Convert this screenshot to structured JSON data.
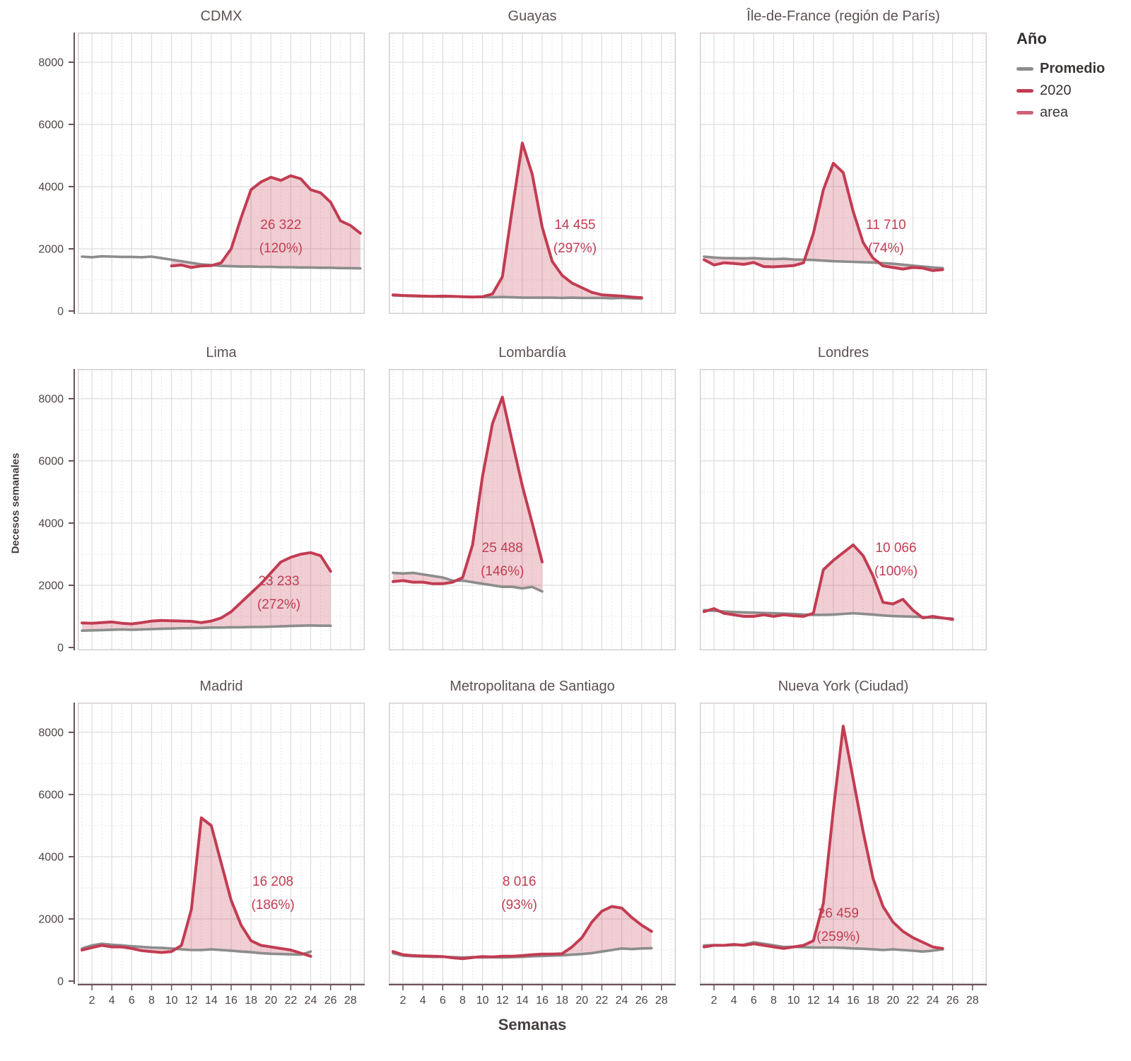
{
  "page": {
    "x_axis_title": "Semanas",
    "y_axis_title": "Decesos semanales"
  },
  "legend": {
    "title": "Año",
    "items": [
      {
        "label": "Promedio",
        "color": "#8d8d8d",
        "bold": true
      },
      {
        "label": "2020",
        "color": "#c23c52",
        "bold": false
      },
      {
        "label": "area",
        "color": "#cf6276",
        "bold": false
      }
    ]
  },
  "chart_data": {
    "type": "line",
    "title": "",
    "xlabel": "Semanas",
    "ylabel": "Decesos semanales",
    "x_ticks_labeled": [
      2,
      4,
      6,
      8,
      10,
      12,
      14,
      16,
      18,
      20,
      22,
      24,
      26,
      28
    ],
    "y_ticks": [
      0,
      2000,
      4000,
      6000,
      8000
    ],
    "x_range": [
      1,
      29
    ],
    "y_range": [
      0,
      8950
    ],
    "grid": true,
    "legend_position": "top-right",
    "series_colors": {
      "promedio": "#8c8c8c",
      "2020": "#c23c52",
      "area_fill": "rgba(195,60,82,0.25)"
    },
    "panels": [
      {
        "title": "CDMX",
        "annotation": {
          "line1": "26 322",
          "line2": "(120%)",
          "week": 21,
          "value1": 2770,
          "value2": 2020
        },
        "promedio": [
          1750,
          1730,
          1760,
          1750,
          1740,
          1740,
          1730,
          1750,
          1700,
          1650,
          1600,
          1550,
          1500,
          1480,
          1450,
          1440,
          1430,
          1430,
          1420,
          1420,
          1410,
          1410,
          1400,
          1400,
          1390,
          1390,
          1380,
          1380,
          1370
        ],
        "y2020": [
          null,
          null,
          null,
          null,
          null,
          null,
          null,
          null,
          null,
          1450,
          1480,
          1400,
          1450,
          1460,
          1550,
          2000,
          3000,
          3900,
          4150,
          4300,
          4200,
          4350,
          4250,
          3900,
          3800,
          3500,
          2900,
          2750,
          2500
        ]
      },
      {
        "title": "Guayas",
        "annotation": {
          "line1": "14 455",
          "line2": "(297%)",
          "week": 19.3,
          "value1": 2770,
          "value2": 2020
        },
        "promedio": [
          500,
          490,
          480,
          470,
          470,
          460,
          470,
          460,
          450,
          450,
          440,
          450,
          440,
          430,
          430,
          430,
          430,
          420,
          430,
          420,
          420,
          420,
          410,
          420,
          410,
          400
        ],
        "y2020": [
          520,
          500,
          490,
          480,
          470,
          480,
          470,
          460,
          450,
          460,
          550,
          1100,
          3300,
          5400,
          4400,
          2700,
          1600,
          1150,
          900,
          750,
          600,
          520,
          500,
          480,
          450,
          430
        ]
      },
      {
        "title": "Île-de-France (región de París)",
        "annotation": {
          "line1": "11 710",
          "line2": "(74%)",
          "week": 19.3,
          "value1": 2770,
          "value2": 2020
        },
        "promedio": [
          1750,
          1720,
          1700,
          1700,
          1690,
          1700,
          1680,
          1670,
          1680,
          1660,
          1650,
          1640,
          1620,
          1600,
          1590,
          1580,
          1570,
          1560,
          1540,
          1520,
          1490,
          1460,
          1430,
          1400,
          1380
        ],
        "y2020": [
          1650,
          1480,
          1550,
          1530,
          1500,
          1560,
          1430,
          1420,
          1440,
          1460,
          1550,
          2500,
          3900,
          4750,
          4450,
          3200,
          2200,
          1700,
          1450,
          1400,
          1350,
          1400,
          1380,
          1300,
          1330
        ]
      },
      {
        "title": "Lima",
        "annotation": {
          "line1": "23 233",
          "line2": "(272%)",
          "week": 20.8,
          "value1": 2140,
          "value2": 1390
        },
        "promedio": [
          540,
          550,
          560,
          570,
          580,
          570,
          580,
          590,
          600,
          610,
          620,
          620,
          630,
          640,
          640,
          650,
          650,
          660,
          660,
          670,
          680,
          690,
          700,
          710,
          700,
          700
        ],
        "y2020": [
          790,
          780,
          800,
          820,
          780,
          760,
          800,
          850,
          870,
          860,
          850,
          840,
          800,
          850,
          950,
          1150,
          1450,
          1750,
          2050,
          2400,
          2750,
          2900,
          3000,
          3050,
          2950,
          2450
        ]
      },
      {
        "title": "Lombardía",
        "annotation": {
          "line1": "25 488",
          "line2": "(146%)",
          "week": 12,
          "value1": 3200,
          "value2": 2455
        },
        "promedio": [
          2400,
          2380,
          2400,
          2350,
          2300,
          2250,
          2150,
          2150,
          2100,
          2050,
          2000,
          1950,
          1950,
          1900,
          1950,
          1800
        ],
        "y2020": [
          2120,
          2150,
          2100,
          2100,
          2050,
          2050,
          2100,
          2250,
          3300,
          5500,
          7200,
          8050,
          6600,
          5200,
          4000,
          2750
        ]
      },
      {
        "title": "Londres",
        "annotation": {
          "line1": "10 066",
          "line2": "(100%)",
          "week": 20.3,
          "value1": 3200,
          "value2": 2455
        },
        "promedio": [
          1200,
          1180,
          1160,
          1140,
          1130,
          1120,
          1110,
          1100,
          1090,
          1080,
          1060,
          1050,
          1050,
          1060,
          1080,
          1100,
          1080,
          1060,
          1030,
          1010,
          1000,
          990,
          980,
          960,
          940,
          930
        ],
        "y2020": [
          1150,
          1250,
          1100,
          1050,
          1000,
          1000,
          1050,
          1000,
          1050,
          1020,
          1000,
          1100,
          2500,
          2800,
          3050,
          3300,
          2950,
          2300,
          1450,
          1400,
          1550,
          1200,
          950,
          1000,
          950,
          900
        ]
      },
      {
        "title": "Madrid",
        "annotation": {
          "line1": "16 208",
          "line2": "(186%)",
          "week": 20.2,
          "value1": 3200,
          "value2": 2455
        },
        "promedio": [
          1050,
          1150,
          1200,
          1170,
          1150,
          1120,
          1100,
          1080,
          1070,
          1050,
          1020,
          1000,
          1000,
          1020,
          1000,
          980,
          950,
          930,
          900,
          880,
          870,
          860,
          850,
          950
        ],
        "y2020": [
          1000,
          1080,
          1150,
          1100,
          1100,
          1050,
          980,
          950,
          920,
          950,
          1150,
          2300,
          5250,
          5000,
          3800,
          2600,
          1800,
          1300,
          1150,
          1100,
          1050,
          1000,
          900,
          800
        ]
      },
      {
        "title": "Metropolitana de Santiago",
        "annotation": {
          "line1": "8 016",
          "line2": "(93%)",
          "week": 13.7,
          "value1": 3200,
          "value2": 2455
        },
        "promedio": [
          900,
          820,
          800,
          790,
          780,
          780,
          770,
          760,
          770,
          760,
          770,
          760,
          770,
          780,
          800,
          810,
          820,
          830,
          850,
          870,
          900,
          950,
          1000,
          1050,
          1030,
          1050,
          1060
        ],
        "y2020": [
          950,
          850,
          820,
          810,
          800,
          790,
          750,
          720,
          760,
          790,
          780,
          800,
          800,
          820,
          850,
          870,
          870,
          880,
          1100,
          1400,
          1900,
          2250,
          2400,
          2350,
          2050,
          1800,
          1600
        ]
      },
      {
        "title": "Nueva York (Ciudad)",
        "annotation": {
          "line1": "26 459",
          "line2": "(259%)",
          "week": 14.5,
          "value1": 2180,
          "value2": 1430
        },
        "promedio": [
          1150,
          1160,
          1150,
          1160,
          1170,
          1250,
          1200,
          1150,
          1100,
          1100,
          1090,
          1080,
          1080,
          1080,
          1070,
          1050,
          1040,
          1020,
          1000,
          1020,
          1000,
          980,
          950,
          980,
          1020
        ],
        "y2020": [
          1100,
          1150,
          1150,
          1180,
          1150,
          1200,
          1150,
          1100,
          1050,
          1100,
          1150,
          1300,
          2500,
          5500,
          8200,
          6500,
          4800,
          3300,
          2400,
          1900,
          1600,
          1400,
          1250,
          1100,
          1050
        ]
      }
    ]
  }
}
